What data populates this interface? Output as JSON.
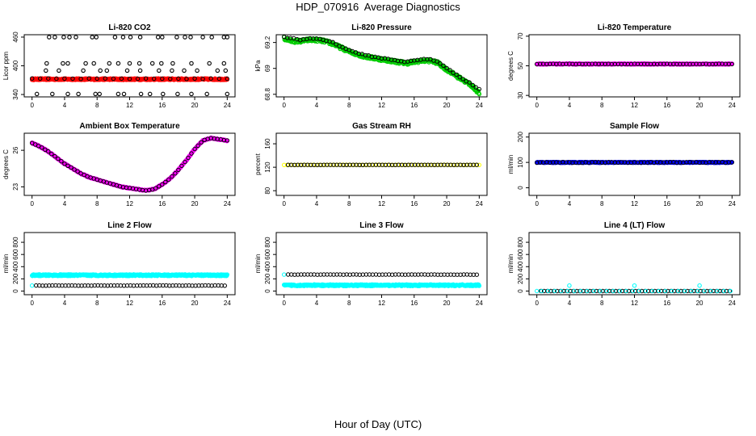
{
  "page": {
    "title": "HDP_070916  Average Diagnostics",
    "x_label": "Hour of Day (UTC)"
  },
  "colors": {
    "red": "#ff0000",
    "green": "#00cc00",
    "magenta": "#ff00ff",
    "yellow": "#ffff00",
    "blue": "#0000ff",
    "cyan": "#00ffff",
    "black": "#000000"
  },
  "chart_data": [
    {
      "type": "scatter",
      "title": "Li-820 CO2",
      "ylabel": "Licor ppm",
      "x_ticks": [
        0,
        4,
        8,
        12,
        16,
        20,
        24
      ],
      "y_ticks": [
        340,
        400,
        460
      ],
      "xlim": [
        0,
        24
      ],
      "ylim": [
        335,
        465
      ],
      "series": [
        {
          "color": "red",
          "style": "const",
          "value": 372,
          "noise": 1.5
        },
        {
          "color": "black",
          "style": "const",
          "value": 373,
          "noise": 0.5,
          "step": 1.0
        },
        {
          "color": "black",
          "style": "points",
          "x": [
            2.1,
            2.8,
            3.9,
            4.6,
            5.4,
            7.4,
            7.9,
            10.2,
            11.2,
            12.1,
            13.3,
            15.5,
            16.0,
            17.8,
            18.8,
            19.5,
            21.0,
            22.1,
            23.6,
            24.0
          ],
          "y": [
            460,
            460,
            460,
            460,
            460,
            460,
            460,
            460,
            460,
            460,
            460,
            460,
            460,
            460,
            460,
            460,
            460,
            460,
            460,
            460
          ]
        },
        {
          "color": "black",
          "style": "points",
          "x": [
            1.8,
            3.8,
            4.4,
            6.6,
            7.6,
            9.5,
            10.6,
            12.0,
            13.2,
            14.8,
            15.9,
            17.3,
            19.6,
            21.8,
            23.6
          ],
          "y": [
            405,
            405,
            405,
            405,
            405,
            405,
            405,
            405,
            405,
            405,
            405,
            405,
            405,
            405,
            405
          ]
        },
        {
          "color": "black",
          "style": "points",
          "x": [
            1.7,
            3.3,
            6.3,
            8.4,
            9.2,
            11.7,
            13.3,
            15.6,
            17.2,
            18.7,
            20.3,
            22.8,
            23.8
          ],
          "y": [
            390,
            390,
            390,
            390,
            390,
            390,
            390,
            390,
            390,
            390,
            390,
            390,
            390
          ]
        },
        {
          "color": "black",
          "style": "points",
          "x": [
            0.6,
            2.5,
            4.4,
            5.7,
            7.8,
            8.3,
            10.6,
            11.3,
            13.4,
            14.5,
            16.1,
            17.9,
            19.6,
            21.5,
            24.0
          ],
          "y": [
            341,
            341,
            341,
            341,
            341,
            341,
            341,
            341,
            341,
            341,
            341,
            341,
            341,
            341,
            341
          ]
        }
      ]
    },
    {
      "type": "scatter",
      "title": "Li-820 Pressure",
      "ylabel": "kPa",
      "x_ticks": [
        0,
        4,
        8,
        12,
        16,
        20,
        24
      ],
      "y_ticks": [
        68.8,
        69.0,
        69.2
      ],
      "xlim": [
        0,
        24
      ],
      "ylim": [
        68.78,
        69.26
      ],
      "series": [
        {
          "color": "green",
          "style": "curve",
          "noise": 0.012,
          "step": 0.06,
          "x": [
            0,
            1,
            2,
            3,
            4,
            5,
            6,
            7,
            8,
            9,
            10,
            11,
            12,
            13,
            14,
            15,
            16,
            17,
            18,
            19,
            20,
            21,
            22,
            23,
            24
          ],
          "y": [
            69.23,
            69.21,
            69.21,
            69.22,
            69.22,
            69.21,
            69.19,
            69.16,
            69.13,
            69.11,
            69.09,
            69.08,
            69.07,
            69.06,
            69.05,
            69.04,
            69.05,
            69.06,
            69.06,
            69.04,
            68.99,
            68.95,
            68.91,
            68.87,
            68.81
          ]
        },
        {
          "color": "black",
          "style": "curve",
          "noise": 0.004,
          "step": 0.4,
          "x": [
            0,
            1,
            2,
            3,
            4,
            5,
            6,
            7,
            8,
            9,
            10,
            11,
            12,
            13,
            14,
            15,
            16,
            17,
            18,
            19,
            20,
            21,
            22,
            23,
            24
          ],
          "y": [
            69.24,
            69.23,
            69.22,
            69.23,
            69.23,
            69.22,
            69.2,
            69.17,
            69.14,
            69.12,
            69.1,
            69.09,
            69.08,
            69.07,
            69.06,
            69.05,
            69.06,
            69.07,
            69.07,
            69.05,
            69.0,
            68.96,
            68.92,
            68.88,
            68.84
          ]
        }
      ]
    },
    {
      "type": "scatter",
      "title": "Li-820 Temperature",
      "ylabel": "degrees C",
      "x_ticks": [
        0,
        4,
        8,
        12,
        16,
        20,
        24
      ],
      "y_ticks": [
        30,
        50,
        70
      ],
      "xlim": [
        0,
        24
      ],
      "ylim": [
        29,
        71
      ],
      "series": [
        {
          "color": "magenta",
          "style": "const",
          "value": 51.2,
          "noise": 0.3
        },
        {
          "color": "black",
          "style": "const",
          "value": 51.2,
          "noise": 0.1,
          "step": 0.4
        }
      ]
    },
    {
      "type": "scatter",
      "title": "Ambient Box Temperature",
      "ylabel": "degrees C",
      "x_ticks": [
        0,
        4,
        8,
        12,
        16,
        20,
        24
      ],
      "y_ticks": [
        23,
        26
      ],
      "xlim": [
        0,
        24
      ],
      "ylim": [
        22.3,
        27.4
      ],
      "series": [
        {
          "color": "magenta",
          "style": "curve",
          "noise": 0.04,
          "step": 0.05,
          "x": [
            0,
            1,
            2,
            3,
            4,
            5,
            6,
            7,
            8,
            9,
            10,
            11,
            12,
            13,
            14,
            15,
            16,
            17,
            18,
            19,
            20,
            21,
            22,
            23,
            24
          ],
          "y": [
            26.6,
            26.3,
            25.9,
            25.4,
            24.9,
            24.5,
            24.1,
            23.8,
            23.6,
            23.4,
            23.2,
            23.0,
            22.9,
            22.8,
            22.7,
            22.8,
            23.2,
            23.7,
            24.4,
            25.2,
            26.1,
            26.8,
            27.0,
            26.9,
            26.8
          ]
        },
        {
          "color": "black",
          "style": "curve",
          "noise": 0.01,
          "step": 0.4,
          "x": [
            0,
            1,
            2,
            3,
            4,
            5,
            6,
            7,
            8,
            9,
            10,
            11,
            12,
            13,
            14,
            15,
            16,
            17,
            18,
            19,
            20,
            21,
            22,
            23,
            24
          ],
          "y": [
            26.6,
            26.3,
            25.9,
            25.4,
            24.9,
            24.5,
            24.1,
            23.8,
            23.6,
            23.4,
            23.2,
            23.0,
            22.9,
            22.8,
            22.7,
            22.8,
            23.2,
            23.7,
            24.4,
            25.2,
            26.1,
            26.8,
            27.0,
            26.9,
            26.8
          ]
        }
      ]
    },
    {
      "type": "scatter",
      "title": "Gas Stream RH",
      "ylabel": "percent",
      "x_ticks": [
        0,
        4,
        8,
        12,
        16,
        20,
        24
      ],
      "y_ticks": [
        80,
        120,
        160
      ],
      "xlim": [
        0,
        24
      ],
      "ylim": [
        72,
        178
      ],
      "series": [
        {
          "color": "yellow",
          "style": "const",
          "value": 124,
          "noise": 0.2,
          "step": 0.4
        },
        {
          "color": "black",
          "style": "const",
          "value": 124,
          "noise": 0.1,
          "step": 0.4,
          "from": 0.5
        }
      ]
    },
    {
      "type": "scatter",
      "title": "Sample Flow",
      "ylabel": "ml/min",
      "x_ticks": [
        0,
        4,
        8,
        12,
        16,
        20,
        24
      ],
      "y_ticks": [
        0,
        100,
        200
      ],
      "xlim": [
        0,
        24
      ],
      "ylim": [
        -30,
        215
      ],
      "series": [
        {
          "color": "blue",
          "style": "const",
          "value": 100,
          "noise": 1.5
        },
        {
          "color": "black",
          "style": "const",
          "value": 100,
          "noise": 1.5,
          "step": 0.4
        }
      ]
    },
    {
      "type": "scatter",
      "title": "Line 2 Flow",
      "ylabel": "ml/min",
      "x_ticks": [
        0,
        4,
        8,
        12,
        16,
        20,
        24
      ],
      "y_ticks": [
        0,
        200,
        400,
        600,
        800
      ],
      "xlim": [
        0,
        24
      ],
      "ylim": [
        -60,
        960
      ],
      "series": [
        {
          "color": "cyan",
          "style": "const",
          "value": 260,
          "noise": 12
        },
        {
          "color": "cyan",
          "style": "const",
          "value": 90,
          "noise": 0,
          "step": 0.4,
          "to": 0.3
        },
        {
          "color": "black",
          "style": "const",
          "value": 90,
          "noise": 2,
          "step": 0.4,
          "from": 0.5
        }
      ]
    },
    {
      "type": "scatter",
      "title": "Line 3 Flow",
      "ylabel": "ml/min",
      "x_ticks": [
        0,
        4,
        8,
        12,
        16,
        20,
        24
      ],
      "y_ticks": [
        0,
        200,
        400,
        600,
        800
      ],
      "xlim": [
        0,
        24
      ],
      "ylim": [
        -60,
        960
      ],
      "series": [
        {
          "color": "cyan",
          "style": "const",
          "value": 95,
          "noise": 12
        },
        {
          "color": "cyan",
          "style": "const",
          "value": 270,
          "noise": 0,
          "step": 0.4,
          "to": 0.3
        },
        {
          "color": "black",
          "style": "const",
          "value": 270,
          "noise": 2,
          "step": 0.4,
          "from": 0.5
        }
      ]
    },
    {
      "type": "scatter",
      "title": "Line 4 (LT) Flow",
      "ylabel": "ml/min",
      "x_ticks": [
        0,
        4,
        8,
        12,
        16,
        20,
        24
      ],
      "y_ticks": [
        0,
        200,
        400,
        600,
        800
      ],
      "xlim": [
        0,
        24
      ],
      "ylim": [
        -60,
        960
      ],
      "series": [
        {
          "color": "cyan",
          "style": "const",
          "value": 0,
          "noise": 0,
          "step": 0.4,
          "to": 0.3
        },
        {
          "color": "black",
          "style": "const",
          "value": 0,
          "noise": 1,
          "step": 0.4,
          "from": 0.5
        },
        {
          "color": "cyan",
          "style": "const",
          "value": 0,
          "noise": 1,
          "step": 0.8,
          "from": 0.6
        },
        {
          "color": "cyan",
          "style": "points",
          "x": [
            4.0,
            12.0,
            20.0
          ],
          "y": [
            90,
            90,
            90
          ]
        }
      ]
    }
  ]
}
